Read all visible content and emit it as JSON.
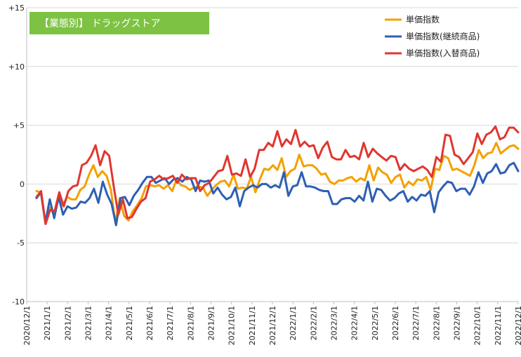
{
  "chart_data": {
    "type": "line",
    "title": "【業態別】 ドラッグストア",
    "title_bg": "#7dc242",
    "ylim": [
      -10,
      15
    ],
    "yticks": [
      "-10",
      "-5",
      "0",
      "+5",
      "+10",
      "+15"
    ],
    "ytick_values": [
      -10,
      -5,
      0,
      5,
      10,
      15
    ],
    "xticks": [
      "2020/12/1",
      "2021/1/1",
      "2021/2/1",
      "2021/3/1",
      "2021/4/1",
      "2021/5/1",
      "2021/6/1",
      "2021/7/1",
      "2021/8/1",
      "2021/9/1",
      "2021/10/1",
      "2021/11/1",
      "2021/12/1",
      "2022/1/1",
      "2022/2/1",
      "2022/3/1",
      "2022/4/1",
      "2022/5/1",
      "2022/6/1",
      "2022/7/1",
      "2022/8/1",
      "2022/9/1",
      "2022/10/1",
      "2022/11/1",
      "2022/12/1"
    ],
    "grid": true,
    "legend_position": "top-right",
    "series": [
      {
        "name": "単価指数",
        "color": "#f4a000",
        "values": [
          -0.6,
          -0.7,
          -3.2,
          -2.0,
          -2.6,
          -1.0,
          -1.8,
          -1.1,
          -1.3,
          -1.3,
          -0.5,
          -0.2,
          0.8,
          1.6,
          0.6,
          1.1,
          0.7,
          -0.5,
          -3.3,
          -1.2,
          -2.7,
          -3.1,
          -2.3,
          -1.8,
          -1.2,
          -0.2,
          -0.1,
          -0.2,
          -0.1,
          -0.4,
          -0.1,
          -0.6,
          0.4,
          -0.1,
          -0.2,
          -0.5,
          -0.3,
          -0.2,
          -0.3,
          -1.0,
          -0.5,
          -0.1,
          0.2,
          0.3,
          -0.2,
          0.8,
          -0.4,
          -0.3,
          -0.4,
          0.6,
          -0.7,
          0.4,
          1.3,
          1.2,
          1.6,
          1.2,
          2.2,
          0.6,
          1.1,
          1.3,
          2.5,
          1.5,
          1.6,
          1.6,
          1.3,
          0.8,
          0.9,
          0.2,
          0.0,
          0.3,
          0.3,
          0.5,
          0.6,
          0.2,
          0.5,
          0.3,
          1.6,
          0.3,
          1.4,
          1.0,
          0.8,
          0.1,
          0.6,
          0.8,
          -0.3,
          0.2,
          -0.1,
          0.4,
          0.3,
          0.6,
          -0.5,
          1.3,
          1.2,
          2.4,
          2.2,
          1.2,
          1.3,
          1.1,
          0.9,
          0.7,
          1.6,
          2.9,
          2.2,
          2.6,
          2.7,
          3.5,
          2.6,
          2.9,
          3.2,
          3.3,
          3.0
        ]
      },
      {
        "name": "単価指数(継続商品)",
        "color": "#2e5fb4",
        "values": [
          -1.2,
          -0.7,
          -3.3,
          -1.3,
          -2.9,
          -1.1,
          -2.6,
          -1.9,
          -2.1,
          -2.0,
          -1.5,
          -1.6,
          -1.2,
          -0.4,
          -1.6,
          0.2,
          -0.9,
          -1.7,
          -3.5,
          -1.2,
          -1.1,
          -1.8,
          -1.0,
          -0.5,
          0.1,
          0.6,
          0.6,
          0.1,
          0.3,
          0.5,
          0.0,
          0.4,
          0.5,
          0.2,
          0.6,
          0.4,
          -0.6,
          0.3,
          0.2,
          0.3,
          -0.8,
          -0.3,
          -0.9,
          -1.3,
          -1.1,
          -0.3,
          -1.9,
          -0.6,
          -0.3,
          -0.1,
          -0.3,
          0.0,
          0.0,
          -0.3,
          -0.1,
          -0.3,
          1.0,
          -1.0,
          -0.2,
          -0.1,
          1.0,
          -0.2,
          -0.2,
          -0.3,
          -0.5,
          -0.6,
          -0.6,
          -1.7,
          -1.7,
          -1.3,
          -1.2,
          -1.2,
          -1.5,
          -1.0,
          -1.4,
          0.2,
          -1.5,
          -0.4,
          -0.5,
          -1.0,
          -1.4,
          -1.2,
          -0.8,
          -0.6,
          -1.5,
          -1.1,
          -1.4,
          -0.9,
          -1.0,
          -0.6,
          -2.4,
          -0.7,
          -0.2,
          0.2,
          0.1,
          -0.6,
          -0.4,
          -0.4,
          -0.9,
          -0.2,
          1.0,
          0.1,
          0.9,
          1.1,
          1.7,
          0.9,
          1.0,
          1.6,
          1.8,
          1.1
        ]
      },
      {
        "name": "単価指数(入替商品)",
        "color": "#e0362f",
        "values": [
          -1.1,
          -0.6,
          -3.4,
          -2.2,
          -2.3,
          -0.7,
          -1.9,
          -0.6,
          -0.2,
          -0.1,
          1.6,
          1.8,
          2.4,
          3.3,
          1.6,
          2.8,
          2.4,
          -0.2,
          -2.6,
          -1.3,
          -2.9,
          -2.8,
          -2.1,
          -1.5,
          -1.2,
          0.2,
          0.4,
          0.7,
          0.4,
          0.5,
          0.7,
          0.1,
          0.8,
          0.4,
          0.5,
          0.5,
          -0.6,
          -0.1,
          0.1,
          0.6,
          1.1,
          1.2,
          2.4,
          0.8,
          0.9,
          0.7,
          2.1,
          0.6,
          1.3,
          2.9,
          2.9,
          3.5,
          3.2,
          4.5,
          3.2,
          3.8,
          3.4,
          4.6,
          3.2,
          3.6,
          3.2,
          3.3,
          2.2,
          3.1,
          3.6,
          2.3,
          2.1,
          2.1,
          2.9,
          2.3,
          2.4,
          2.1,
          3.5,
          2.3,
          3.0,
          2.6,
          2.3,
          2.0,
          2.4,
          2.3,
          1.2,
          1.7,
          1.3,
          1.1,
          1.3,
          1.5,
          1.2,
          0.6,
          2.3,
          1.9,
          4.2,
          4.1,
          2.5,
          2.3,
          1.7,
          2.2,
          2.7,
          4.3,
          3.4,
          4.2,
          4.4,
          4.9,
          3.8,
          4.0,
          4.8,
          4.8,
          4.4
        ]
      }
    ]
  }
}
